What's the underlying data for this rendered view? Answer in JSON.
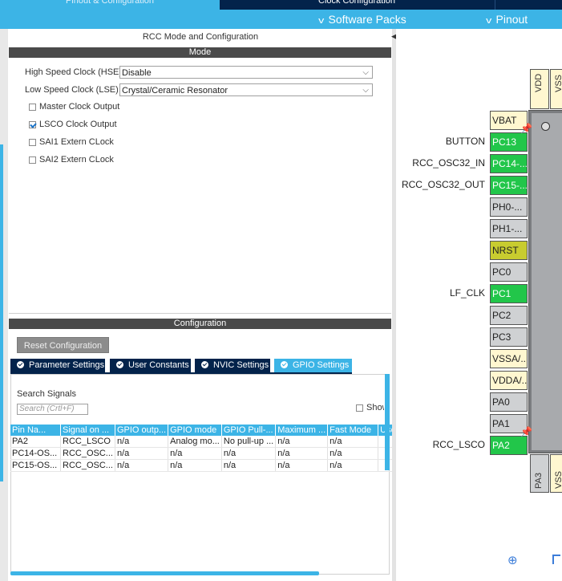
{
  "tabs": {
    "pinout": "Pinout & Configuration",
    "clock": "Clock Configuration",
    "extra": ""
  },
  "submenu": {
    "software_packs": "Software Packs",
    "pinout": "Pinout"
  },
  "rcc": {
    "panel_title": "RCC Mode and Configuration",
    "mode_header": "Mode",
    "hse_label": "High Speed Clock (HSE)",
    "hse_value": "Disable",
    "lse_label": "Low Speed Clock (LSE)",
    "lse_value": "Crystal/Ceramic Resonator",
    "checkboxes": [
      {
        "label": "Master Clock Output",
        "checked": false
      },
      {
        "label": "LSCO Clock Output",
        "checked": true
      },
      {
        "label": "SAI1 Extern CLock",
        "checked": false
      },
      {
        "label": "SAI2 Extern CLock",
        "checked": false
      }
    ]
  },
  "config": {
    "header": "Configuration",
    "reset_button": "Reset Configuration",
    "tabs": [
      "Parameter Settings",
      "User Constants",
      "NVIC Settings",
      "GPIO Settings"
    ],
    "active_tab": "GPIO Settings",
    "search_label": "Search Signals",
    "search_placeholder": "Search (Crtl+F)",
    "show_label": "Show",
    "columns": [
      "Pin Na... ",
      "Signal on ...",
      "GPIO outp...",
      "GPIO mode",
      "GPIO Pull-...",
      "Maximum ...",
      "Fast Mode",
      "User"
    ],
    "rows": [
      [
        "PA2",
        "RCC_LSCO",
        "n/a",
        "Analog mo...",
        "No pull-up ...",
        "n/a",
        "n/a",
        ""
      ],
      [
        "PC14-OS...",
        "RCC_OSC...",
        "n/a",
        "n/a",
        "n/a",
        "n/a",
        "n/a",
        ""
      ],
      [
        "PC15-OS...",
        "RCC_OSC...",
        "n/a",
        "n/a",
        "n/a",
        "n/a",
        "n/a",
        ""
      ]
    ]
  },
  "chip": {
    "top_pins": [
      "VDD",
      "VSS"
    ],
    "bottom_pins": [
      "PA3",
      "VSS"
    ],
    "pins": [
      {
        "name": "VBAT",
        "label": "",
        "color": "yellow"
      },
      {
        "name": "PC13",
        "label": "BUTTON",
        "color": "green"
      },
      {
        "name": "PC14-...",
        "label": "RCC_OSC32_IN",
        "color": "green"
      },
      {
        "name": "PC15-...",
        "label": "RCC_OSC32_OUT",
        "color": "green"
      },
      {
        "name": "PH0-...",
        "label": "",
        "color": "gray"
      },
      {
        "name": "PH1-...",
        "label": "",
        "color": "gray"
      },
      {
        "name": "NRST",
        "label": "",
        "color": "olive"
      },
      {
        "name": "PC0",
        "label": "",
        "color": "gray"
      },
      {
        "name": "PC1",
        "label": "LF_CLK",
        "color": "green"
      },
      {
        "name": "PC2",
        "label": "",
        "color": "gray"
      },
      {
        "name": "PC3",
        "label": "",
        "color": "gray"
      },
      {
        "name": "VSSA/...",
        "label": "",
        "color": "yellow"
      },
      {
        "name": "VDDA/...",
        "label": "",
        "color": "yellow"
      },
      {
        "name": "PA0",
        "label": "",
        "color": "gray"
      },
      {
        "name": "PA1",
        "label": "",
        "color": "gray"
      },
      {
        "name": "PA2",
        "label": "RCC_LSCO",
        "color": "green"
      }
    ]
  },
  "colors": {
    "accent": "#3cb4e6",
    "dark": "#03234b",
    "pin_green": "#22c64a"
  }
}
